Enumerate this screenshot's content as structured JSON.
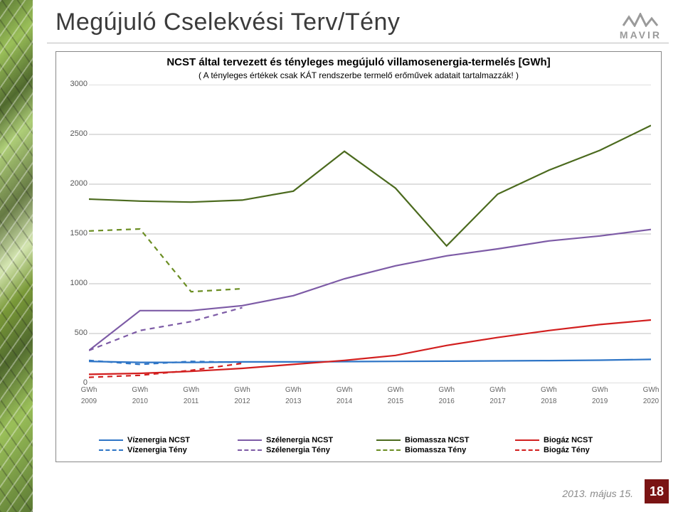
{
  "slide": {
    "title": "Megújuló Cselekvési Terv/Tény",
    "brand": "MAVIR",
    "footer_date": "2013. május 15.",
    "page_number": "18"
  },
  "chart": {
    "type": "line",
    "title": "NCST által tervezett és tényleges megújuló villamosenergia-termelés [GWh]",
    "subtitle": "( A tényleges értékek csak KÁT rendszerbe termelő erőművek adatait tartalmazzák! )",
    "background_color": "#ffffff",
    "grid_color": "#bfbfbf",
    "axis_text_color": "#666666",
    "font_family": "Segoe UI",
    "title_fontsize": 15,
    "label_fontsize": 11,
    "xlim": [
      2009,
      2020
    ],
    "ylim": [
      0,
      3000
    ],
    "ytick_step": 500,
    "yticks": [
      0,
      500,
      1000,
      1500,
      2000,
      2500,
      3000
    ],
    "x_categories": [
      "2009",
      "2010",
      "2011",
      "2012",
      "2013",
      "2014",
      "2015",
      "2016",
      "2017",
      "2018",
      "2019",
      "2020"
    ],
    "x_unit_label": "GWh",
    "line_width": 2.2,
    "series": [
      {
        "name": "Vízenergia NCST",
        "color": "#2e75c6",
        "dash": "solid",
        "values": [
          220,
          210,
          210,
          215,
          215,
          218,
          220,
          222,
          225,
          228,
          232,
          240
        ]
      },
      {
        "name": "Vízenergia Tény",
        "color": "#2e75c6",
        "dash": "dashed",
        "values": [
          230,
          190,
          220,
          210,
          null,
          null,
          null,
          null,
          null,
          null,
          null,
          null
        ]
      },
      {
        "name": "Szélenergia NCST",
        "color": "#7d5ba6",
        "dash": "solid",
        "values": [
          330,
          730,
          730,
          780,
          880,
          1050,
          1180,
          1280,
          1350,
          1430,
          1480,
          1545
        ]
      },
      {
        "name": "Szélenergia Tény",
        "color": "#7d5ba6",
        "dash": "dashed",
        "values": [
          330,
          530,
          620,
          760,
          null,
          null,
          null,
          null,
          null,
          null,
          null,
          null
        ]
      },
      {
        "name": "Biomassza NCST",
        "color": "#4b6a1e",
        "dash": "solid",
        "values": [
          1850,
          1830,
          1820,
          1840,
          1930,
          2330,
          1960,
          1380,
          1900,
          2140,
          2340,
          2590
        ]
      },
      {
        "name": "Biomassza Tény",
        "color": "#6b8e23",
        "dash": "dashed",
        "values": [
          1530,
          1550,
          920,
          950,
          null,
          null,
          null,
          null,
          null,
          null,
          null,
          null
        ]
      },
      {
        "name": "Biogáz NCST",
        "color": "#d21f1f",
        "dash": "solid",
        "values": [
          90,
          100,
          120,
          150,
          190,
          230,
          280,
          380,
          460,
          530,
          590,
          636
        ]
      },
      {
        "name": "Biogáz Tény",
        "color": "#d21f1f",
        "dash": "dashed",
        "values": [
          60,
          80,
          130,
          200,
          null,
          null,
          null,
          null,
          null,
          null,
          null,
          null
        ]
      }
    ],
    "legend": [
      {
        "label": "Vízenergia NCST",
        "color": "#2e75c6",
        "dash": "solid"
      },
      {
        "label": "Vízenergia Tény",
        "color": "#2e75c6",
        "dash": "dashed"
      },
      {
        "label": "Szélenergia NCST",
        "color": "#7d5ba6",
        "dash": "solid"
      },
      {
        "label": "Szélenergia Tény",
        "color": "#7d5ba6",
        "dash": "dashed"
      },
      {
        "label": "Biomassza NCST",
        "color": "#4b6a1e",
        "dash": "solid"
      },
      {
        "label": "Biomassza Tény",
        "color": "#6b8e23",
        "dash": "dashed"
      },
      {
        "label": "Biogáz NCST",
        "color": "#d21f1f",
        "dash": "solid"
      },
      {
        "label": "Biogáz Tény",
        "color": "#d21f1f",
        "dash": "dashed"
      }
    ]
  },
  "colors": {
    "page_bg": "#ffffff",
    "title_text": "#3b3b3b",
    "brand_grey": "#9a9a9a",
    "pagenum_bg": "#7a1414",
    "side_strip_base": "#6b8e23"
  }
}
